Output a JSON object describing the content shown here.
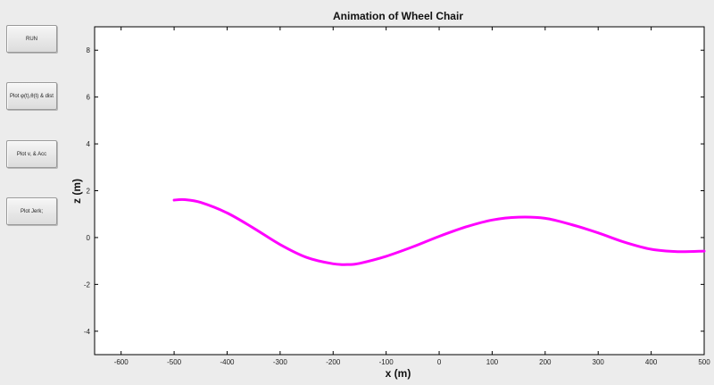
{
  "controls": {
    "run_label": "RUN",
    "plot_angles_label": "Plot φ(t),θ(t) & dist",
    "plot_velocity_label": "Plot v, & Acc",
    "plot_jerk_label": "Plot Jerk;"
  },
  "chart_data": {
    "type": "line",
    "title": "Animation of Wheel Chair",
    "xlabel": "x (m)",
    "ylabel": "z (m)",
    "xlim": [
      -650,
      500
    ],
    "ylim": [
      -5,
      9
    ],
    "xticks": [
      -600,
      -500,
      -400,
      -300,
      -200,
      -100,
      0,
      100,
      200,
      300,
      400,
      500
    ],
    "yticks": [
      -4,
      -2,
      0,
      2,
      4,
      6,
      8
    ],
    "grid": false,
    "series": [
      {
        "color": "#ff00ff",
        "x": [
          -500,
          -480,
          -450,
          -400,
          -350,
          -300,
          -250,
          -200,
          -170,
          -150,
          -100,
          -50,
          0,
          50,
          100,
          150,
          200,
          250,
          300,
          350,
          400,
          450,
          500
        ],
        "y": [
          1.6,
          1.62,
          1.5,
          1.05,
          0.4,
          -0.3,
          -0.85,
          -1.12,
          -1.15,
          -1.1,
          -0.8,
          -0.4,
          0.05,
          0.45,
          0.75,
          0.87,
          0.82,
          0.55,
          0.2,
          -0.2,
          -0.5,
          -0.6,
          -0.58
        ]
      }
    ]
  }
}
